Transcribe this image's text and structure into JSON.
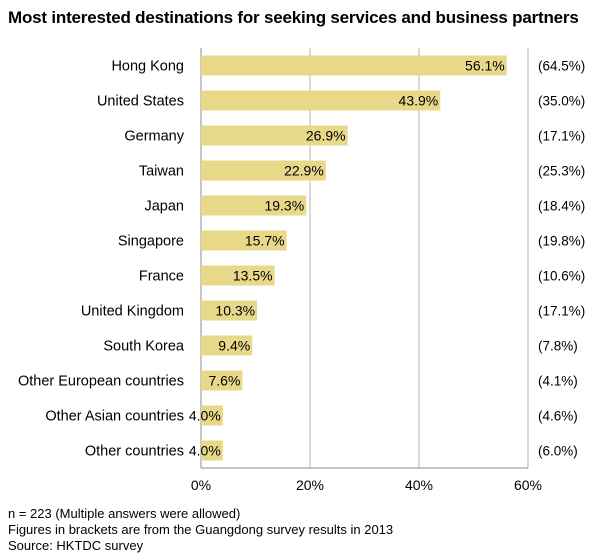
{
  "chart_data": {
    "type": "bar",
    "orientation": "horizontal",
    "title": "Most interested destinations for seeking services and business partners",
    "categories": [
      "Hong Kong",
      "United States",
      "Germany",
      "Taiwan",
      "Japan",
      "Singapore",
      "France",
      "United Kingdom",
      "South Korea",
      "Other European countries",
      "Other Asian countries",
      "Other countries"
    ],
    "values": [
      56.1,
      43.9,
      26.9,
      22.9,
      19.3,
      15.7,
      13.5,
      10.3,
      9.4,
      7.6,
      4.0,
      4.0
    ],
    "value_labels": [
      "56.1%",
      "43.9%",
      "26.9%",
      "22.9%",
      "19.3%",
      "15.7%",
      "13.5%",
      "10.3%",
      "9.4%",
      "7.6%",
      "4.0%",
      "4.0%"
    ],
    "bracket_labels": [
      "(64.5%)",
      "(35.0%)",
      "(17.1%)",
      "(25.3%)",
      "(18.4%)",
      "(19.8%)",
      "(10.6%)",
      "(17.1%)",
      "(7.8%)",
      "(4.1%)",
      "(4.6%)",
      "(6.0%)"
    ],
    "xlim": [
      0,
      60
    ],
    "xticks": [
      0,
      20,
      40,
      60
    ],
    "xtick_labels": [
      "0%",
      "20%",
      "40%",
      "60%"
    ],
    "grid": "vertical",
    "bar_color": "#e8d98a"
  },
  "notes": {
    "n": "n = 223 (Multiple answers were allowed)",
    "brackets": "Figures in brackets are from the Guangdong survey results in 2013",
    "source": "Source: HKTDC survey"
  }
}
